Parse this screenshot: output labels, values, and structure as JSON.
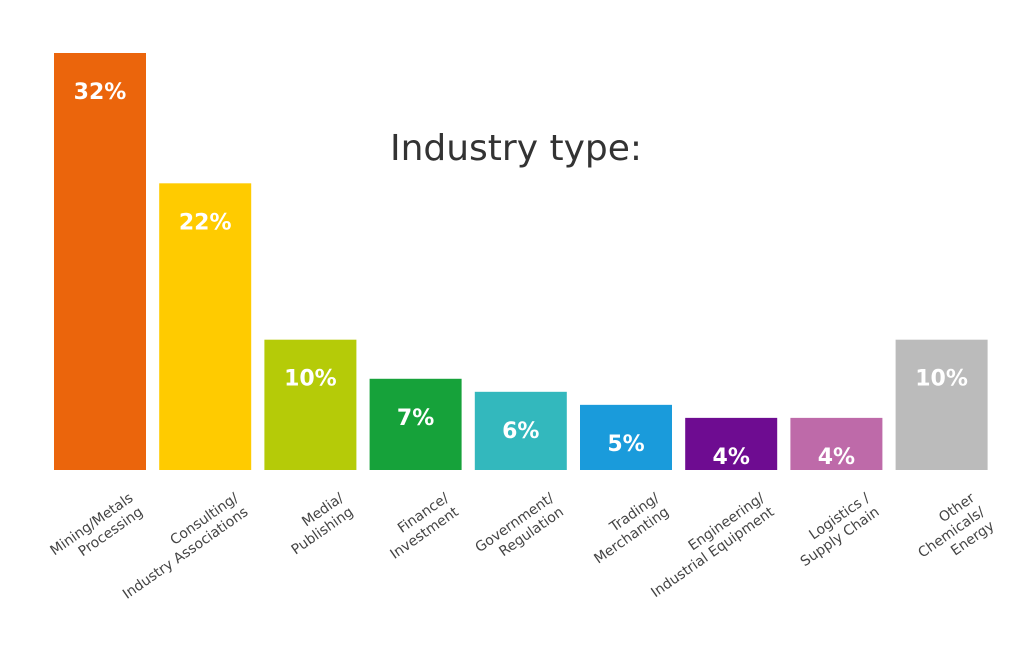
{
  "chart_data": {
    "type": "bar",
    "title": "Industry type:",
    "categories": [
      [
        "Mining/Metals",
        "Processing"
      ],
      [
        "Consulting/",
        "Industry Associations"
      ],
      [
        "Media/",
        "Publishing"
      ],
      [
        "Finance/",
        "Investment"
      ],
      [
        "Government/",
        "Regulation"
      ],
      [
        "Trading/",
        "Merchanting"
      ],
      [
        "Engineering/",
        "Industrial Equipment"
      ],
      [
        "Logistics /",
        "Supply Chain"
      ],
      [
        "Other",
        "Chemicals/",
        "Energy"
      ]
    ],
    "values": [
      32,
      22,
      10,
      7,
      6,
      5,
      4,
      4,
      10
    ],
    "value_labels": [
      "32%",
      "22%",
      "10%",
      "7%",
      "6%",
      "5%",
      "4%",
      "4%",
      "10%"
    ],
    "colors": [
      "#EB650C",
      "#FFCB00",
      "#B5CB08",
      "#16A23A",
      "#33B8BD",
      "#1A9BDB",
      "#6E0C91",
      "#BE6AA9",
      "#BBBBBB"
    ],
    "ylim": [
      0,
      32
    ],
    "xlabel": "",
    "ylabel": "",
    "grid": false,
    "legend": "none"
  }
}
